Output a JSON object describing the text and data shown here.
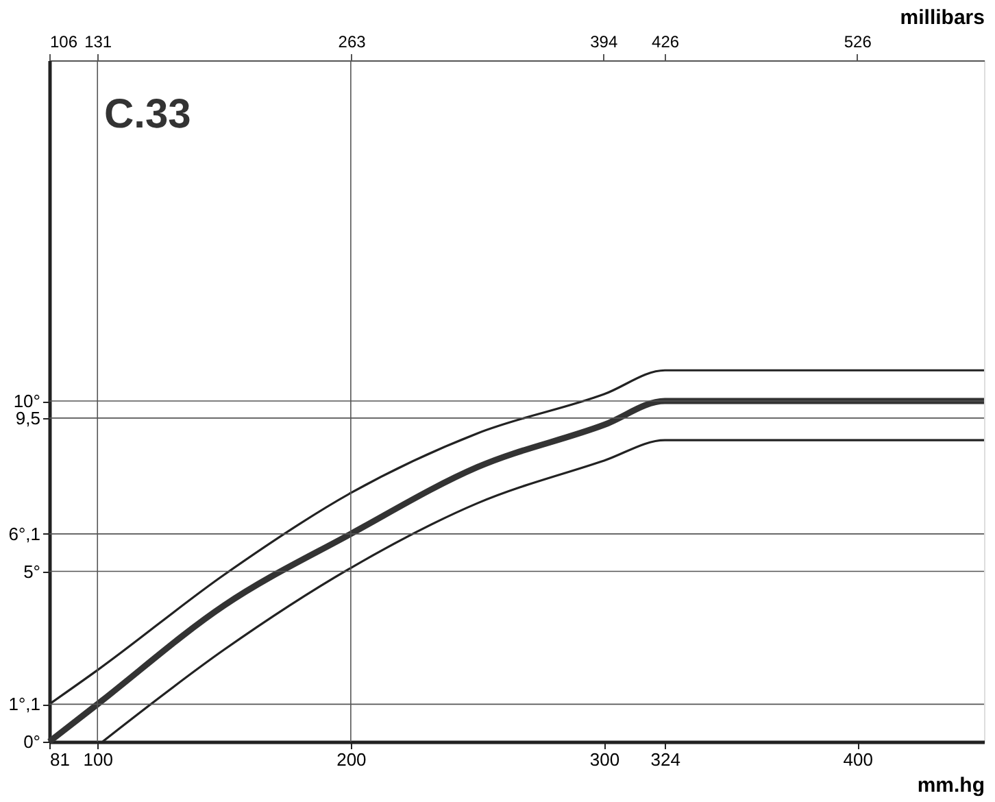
{
  "chart_data": {
    "type": "line",
    "title": "C.33",
    "xlabel": "mm.hg",
    "x2label": "millibars",
    "xlim": [
      81,
      450
    ],
    "xticks": [
      81,
      100,
      200,
      300,
      324,
      400
    ],
    "x2lim": [
      106,
      592
    ],
    "x2ticks": [
      106,
      131,
      263,
      394,
      426,
      526
    ],
    "ylim": [
      0,
      20
    ],
    "yticks": [
      {
        "value": 0,
        "label": "0°"
      },
      {
        "value": 1.1,
        "label": "1°,1"
      },
      {
        "value": 5,
        "label": "5°"
      },
      {
        "value": 6.1,
        "label": "6°,1"
      },
      {
        "value": 9.5,
        "label": "9,5"
      },
      {
        "value": 10,
        "label": "10°"
      }
    ],
    "grid": false,
    "marker": "none",
    "line_style": "solid",
    "series": [
      {
        "color": "#222222",
        "x": [
          81,
          100,
          150,
          200,
          250,
          300,
          324,
          450
        ],
        "values": [
          1.1,
          2.1,
          4.9,
          7.3,
          9.05,
          10.2,
          10.9,
          10.9
        ]
      },
      {
        "color": "#333333",
        "x": [
          81,
          100,
          150,
          200,
          250,
          300,
          324,
          450
        ],
        "values": [
          0,
          1.1,
          4.0,
          6.1,
          8.06,
          9.3,
          10,
          10
        ]
      },
      {
        "color": "#222222",
        "x": [
          102,
          150,
          200,
          250,
          300,
          324,
          450
        ],
        "values": [
          0,
          2.7,
          5.1,
          7.0,
          8.25,
          8.85,
          8.85
        ]
      }
    ],
    "ref_lines": [
      {
        "axis": "y",
        "value": 10
      },
      {
        "axis": "y",
        "value": 9.5
      },
      {
        "axis": "y",
        "value": 6.1
      },
      {
        "axis": "y",
        "value": 5
      },
      {
        "axis": "y",
        "value": 1.1
      },
      {
        "axis": "x",
        "value": 100
      },
      {
        "axis": "x",
        "value": 200
      }
    ]
  }
}
